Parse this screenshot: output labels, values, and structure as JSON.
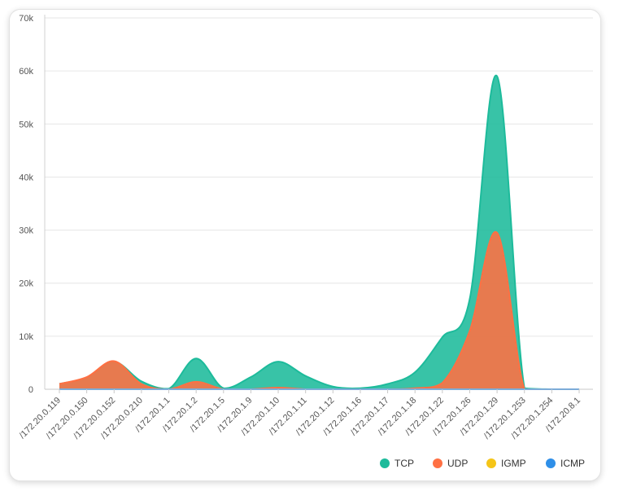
{
  "chart_data": {
    "type": "area",
    "categories": [
      "/172.20.0.119",
      "/172.20.0.150",
      "/172.20.0.152",
      "/172.20.0.210",
      "/172.20.1.1",
      "/172.20.1.2",
      "/172.20.1.5",
      "/172.20.1.9",
      "/172.20.1.10",
      "/172.20.1.11",
      "/172.20.1.12",
      "/172.20.1.16",
      "/172.20.1.17",
      "/172.20.1.18",
      "/172.20.1.22",
      "/172.20.1.26",
      "/172.20.1.29",
      "/172.20.1.253",
      "/172.20.1.254",
      "/172.20.8.1"
    ],
    "ylim": [
      0,
      70000
    ],
    "yticks": [
      "0",
      "10k",
      "20k",
      "30k",
      "40k",
      "50k",
      "60k",
      "70k"
    ],
    "yticks_values": [
      0,
      10000,
      20000,
      30000,
      40000,
      50000,
      60000,
      70000
    ],
    "grid": true,
    "legend_position": "bottom-right",
    "series": [
      {
        "name": "TCP",
        "color": "#1dbb9b",
        "values": [
          1000,
          2200,
          5200,
          1500,
          100,
          5800,
          200,
          2300,
          5200,
          2500,
          500,
          200,
          1000,
          3200,
          9800,
          17000,
          59000,
          200,
          0,
          0
        ]
      },
      {
        "name": "UDP",
        "color": "#ff7043",
        "values": [
          1000,
          2300,
          5300,
          1000,
          0,
          1400,
          0,
          0,
          300,
          0,
          0,
          0,
          0,
          200,
          1200,
          11000,
          29500,
          0,
          0,
          0
        ]
      },
      {
        "name": "IGMP",
        "color": "#f5c518",
        "values": [
          0,
          0,
          0,
          0,
          0,
          0,
          0,
          0,
          0,
          0,
          0,
          0,
          0,
          0,
          0,
          0,
          0,
          0,
          0,
          0
        ]
      },
      {
        "name": "ICMP",
        "color": "#2f8fe8",
        "values": [
          0,
          0,
          0,
          0,
          0,
          0,
          0,
          0,
          0,
          0,
          0,
          0,
          0,
          0,
          0,
          0,
          0,
          0,
          0,
          0
        ]
      }
    ]
  }
}
